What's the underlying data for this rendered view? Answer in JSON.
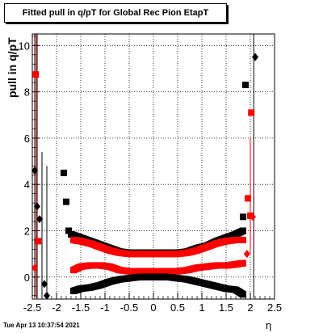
{
  "title": "Fitted pull in q/pT for Global Rec Pion EtapT",
  "timestamp": "Tue Apr 13 10:37:54 2021",
  "chart_data": {
    "type": "scatter",
    "title": "Fitted pull in q/pT for Global Rec Pion EtapT",
    "xlabel": "η",
    "ylabel": "pull in q/pT",
    "xlim": [
      -2.5,
      2.5
    ],
    "ylim": [
      -0.95,
      10.5
    ],
    "x_ticks": [
      "-2.5",
      "-2",
      "-1.5",
      "-1",
      "-0.5",
      "0",
      "0.5",
      "1",
      "1.5",
      "2",
      "2.5"
    ],
    "y_ticks": [
      "0",
      "2",
      "4",
      "6",
      "8",
      "10"
    ],
    "grid": true,
    "colors": {
      "black": "#000000",
      "red": "#ff0000"
    },
    "series": [
      {
        "marker": "square",
        "color": "#000000",
        "points": [
          [
            -1.85,
            4.5
          ],
          [
            -1.8,
            3.25
          ],
          [
            -1.75,
            2.0
          ],
          [
            1.85,
            2.6
          ],
          [
            1.9,
            8.3
          ]
        ]
      },
      {
        "marker": "diamond",
        "color": "#000000",
        "points": [
          [
            -2.45,
            4.6
          ],
          [
            -2.4,
            3.05
          ],
          [
            -2.35,
            2.5
          ],
          [
            -2.25,
            -0.3
          ],
          [
            -2.2,
            -0.8
          ],
          [
            2.1,
            9.5
          ]
        ]
      },
      {
        "marker": "square",
        "color": "#ff0000",
        "points": [
          [
            -2.43,
            8.75
          ],
          [
            -2.38,
            1.55
          ],
          [
            1.95,
            3.4
          ],
          [
            2.0,
            2.65
          ],
          [
            2.02,
            7.1
          ]
        ]
      },
      {
        "marker": "diamond",
        "color": "#ff0000",
        "points": [
          [
            -2.45,
            0.4
          ],
          [
            1.93,
            1.0
          ],
          [
            2.05,
            2.6
          ]
        ]
      },
      {
        "marker": "square",
        "color": "#000000",
        "band": "upper",
        "x": [
          -1.7,
          -1.5,
          -1.3,
          -1.1,
          -0.9,
          -0.7,
          -0.5,
          -0.3,
          -0.1,
          0.1,
          0.3,
          0.5,
          0.7,
          0.9,
          1.1,
          1.3,
          1.5,
          1.7,
          1.85
        ],
        "y": [
          1.85,
          1.7,
          1.55,
          1.4,
          1.25,
          1.1,
          1.05,
          1.05,
          1.05,
          1.05,
          1.05,
          1.05,
          1.1,
          1.25,
          1.35,
          1.55,
          1.7,
          1.85,
          2.0
        ]
      },
      {
        "marker": "square",
        "color": "#ff0000",
        "band": "upper",
        "x": [
          -1.65,
          -1.5,
          -1.3,
          -1.1,
          -0.9,
          -0.7,
          -0.5,
          -0.3,
          -0.1,
          0.1,
          0.3,
          0.5,
          0.7,
          0.9,
          1.1,
          1.3,
          1.5,
          1.7,
          1.85
        ],
        "y": [
          1.6,
          1.55,
          1.45,
          1.3,
          1.15,
          1.05,
          1.0,
          1.0,
          1.0,
          1.0,
          1.0,
          1.0,
          1.05,
          1.15,
          1.3,
          1.45,
          1.55,
          1.6,
          1.6
        ]
      },
      {
        "marker": "square",
        "color": "#ff0000",
        "band": "lower",
        "x": [
          -1.65,
          -1.5,
          -1.3,
          -1.1,
          -0.9,
          -0.7,
          -0.5,
          -0.3,
          -0.1,
          0.1,
          0.3,
          0.5,
          0.7,
          0.9,
          1.1,
          1.3,
          1.5,
          1.7,
          1.85
        ],
        "y": [
          0.3,
          0.45,
          0.5,
          0.5,
          0.45,
          0.3,
          0.25,
          0.25,
          0.25,
          0.25,
          0.25,
          0.25,
          0.3,
          0.4,
          0.45,
          0.5,
          0.5,
          0.55,
          0.6
        ]
      },
      {
        "marker": "square",
        "color": "#000000",
        "band": "lower",
        "x": [
          -1.65,
          -1.5,
          -1.3,
          -1.1,
          -0.9,
          -0.7,
          -0.5,
          -0.3,
          -0.1,
          0.1,
          0.3,
          0.5,
          0.7,
          0.9,
          1.1,
          1.3,
          1.5,
          1.7,
          1.85
        ],
        "y": [
          -0.6,
          -0.5,
          -0.45,
          -0.35,
          -0.2,
          -0.1,
          -0.05,
          0,
          0,
          0,
          0,
          -0.05,
          -0.1,
          -0.2,
          -0.3,
          -0.4,
          -0.5,
          -0.55,
          -0.75
        ]
      }
    ],
    "vertical_error_lines": [
      {
        "x": -2.45,
        "y1": -0.9,
        "y2": 10.5,
        "color": "#000000"
      },
      {
        "x": -2.42,
        "y1": -0.9,
        "y2": 10.5,
        "color": "#ff0000"
      },
      {
        "x": -2.4,
        "y1": -0.9,
        "y2": 10.5,
        "color": "#000000"
      },
      {
        "x": -2.3,
        "y1": -0.9,
        "y2": 5.4,
        "color": "#000000"
      },
      {
        "x": -2.2,
        "y1": -0.9,
        "y2": 4.8,
        "color": "#000000"
      },
      {
        "x": 2.07,
        "y1": -0.9,
        "y2": 10.5,
        "color": "#000000"
      },
      {
        "x": 2.0,
        "y1": 1.0,
        "y2": 6.0,
        "color": "#ff0000"
      }
    ]
  }
}
